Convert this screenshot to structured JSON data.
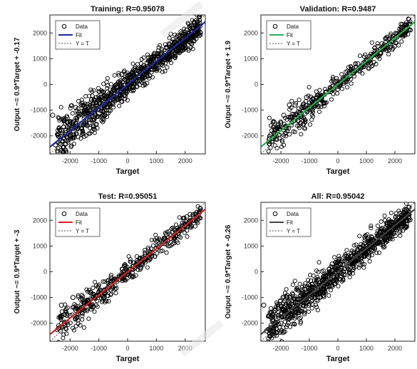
{
  "figure": {
    "panels": [
      {
        "title": "Training: R=0.95078",
        "ylabel": "Output ~= 0.9*Target + -0.17",
        "xlabel": "Target",
        "fit_color": "#1f2a9e",
        "legend": [
          "Data",
          "Fit",
          "Y = T"
        ]
      },
      {
        "title": "Validation: R=0.9487",
        "ylabel": "Output ~= 0.9*Target + 1.9",
        "xlabel": "Target",
        "fit_color": "#22b14c",
        "legend": [
          "Data",
          "Fit",
          "Y = T"
        ]
      },
      {
        "title": "Test: R=0.95051",
        "ylabel": "Output ~= 0.9*Target + -3",
        "xlabel": "Target",
        "fit_color": "#d42020",
        "legend": [
          "Data",
          "Fit",
          "Y = T"
        ]
      },
      {
        "title": "All: R=0.95042",
        "ylabel": "Output ~= 0.9*Target + -0.26",
        "xlabel": "Target",
        "fit_color": "#444444",
        "legend": [
          "Data",
          "Fit",
          "Y = T"
        ]
      }
    ]
  },
  "chart_data": [
    {
      "type": "scatter",
      "title": "Training: R=0.95078",
      "xlabel": "Target",
      "ylabel": "Output ~= 0.9*Target + -0.17",
      "xlim": [
        -2700,
        2700
      ],
      "ylim": [
        -2700,
        2700
      ],
      "xticks": [
        -2000,
        -1000,
        0,
        1000,
        2000
      ],
      "xtick_labels": [
        "-2000",
        "-1000",
        "0",
        "1000",
        "2000"
      ],
      "yticks": [
        -2000,
        -1000,
        0,
        1000,
        2000
      ],
      "ytick_labels": [
        "-2000",
        "-1000",
        "0",
        "1000",
        "2000"
      ],
      "R": 0.95078,
      "fit": {
        "slope": 0.9,
        "intercept": -0.17
      },
      "series": [
        {
          "name": "Data",
          "x": [
            -2500,
            -2300,
            -2100,
            -1900,
            -1700,
            -1500,
            -1300,
            -1100,
            -900,
            -700,
            -500,
            -300,
            -100,
            100,
            300,
            500,
            700,
            900,
            1100,
            1300,
            1500,
            1700,
            1900,
            2100,
            2300,
            2500,
            -2200,
            -1800,
            -1400,
            -1000,
            -600,
            -200,
            200,
            600,
            1000,
            1400,
            1800,
            2200,
            -2000,
            -1600,
            -1200,
            -800,
            -400,
            0,
            400,
            800,
            1200,
            1600,
            2000,
            2400,
            -2600,
            -1750,
            -1250,
            -650,
            1750
          ],
          "y": [
            -2350,
            -1800,
            -1300,
            -1500,
            -1100,
            -1300,
            -900,
            -700,
            -500,
            -300,
            -200,
            100,
            200,
            300,
            400,
            600,
            700,
            900,
            1100,
            1200,
            1400,
            1600,
            1800,
            2000,
            2200,
            2400,
            -1400,
            -900,
            -1600,
            -600,
            -800,
            400,
            -100,
            300,
            700,
            1100,
            1500,
            1900,
            -2000,
            -1700,
            -1400,
            -1000,
            -600,
            0,
            500,
            900,
            1200,
            1500,
            1700,
            2500,
            -1200,
            -1700,
            -600,
            -1000,
            1900
          ]
        },
        {
          "name": "Fit",
          "x": [
            -2700,
            2700
          ],
          "y": [
            -2430.17,
            2429.83
          ]
        },
        {
          "name": "Y = T",
          "x": [
            -2700,
            2700
          ],
          "y": [
            -2700,
            2700
          ]
        }
      ],
      "grid": false,
      "legend_position": "top-left"
    },
    {
      "type": "scatter",
      "title": "Validation: R=0.9487",
      "xlabel": "Target",
      "ylabel": "Output ~= 0.9*Target + 1.9",
      "xlim": [
        -2700,
        2700
      ],
      "ylim": [
        -2700,
        2700
      ],
      "xticks": [
        -2000,
        -1000,
        0,
        1000,
        2000
      ],
      "xtick_labels": [
        "-2000",
        "-1000",
        "0",
        "1000",
        "2000"
      ],
      "yticks": [
        -2000,
        -1000,
        0,
        1000,
        2000
      ],
      "ytick_labels": [
        "-2000",
        "-1000",
        "0",
        "1000",
        "2000"
      ],
      "R": 0.9487,
      "fit": {
        "slope": 0.9,
        "intercept": 1.9
      },
      "series": [
        {
          "name": "Data",
          "x": [
            -2400,
            -2200,
            -2000,
            -1800,
            -1600,
            -1400,
            -1200,
            -1000,
            -800,
            -600,
            -400,
            -200,
            0,
            200,
            400,
            600,
            800,
            1000,
            1200,
            1400,
            1600,
            1800,
            2000,
            2200,
            2400,
            -2100,
            -1700,
            -1300,
            -900,
            -500,
            -100,
            300,
            700,
            1100,
            1500,
            1900,
            2300,
            -1900,
            -1500,
            -1100
          ],
          "y": [
            -2100,
            -1900,
            -1500,
            -1700,
            -1300,
            -1400,
            -1000,
            -900,
            -700,
            -500,
            -300,
            -200,
            0,
            200,
            300,
            500,
            700,
            900,
            1100,
            1300,
            1400,
            1600,
            1800,
            2000,
            2200,
            -1600,
            -800,
            -1500,
            -1000,
            -700,
            100,
            100,
            800,
            900,
            1200,
            1800,
            2000,
            -1200,
            -800,
            -500
          ]
        },
        {
          "name": "Fit",
          "x": [
            -2700,
            2700
          ],
          "y": [
            -2428.1,
            2431.9
          ]
        },
        {
          "name": "Y = T",
          "x": [
            -2700,
            2700
          ],
          "y": [
            -2700,
            2700
          ]
        }
      ],
      "grid": false,
      "legend_position": "top-left"
    },
    {
      "type": "scatter",
      "title": "Test: R=0.95051",
      "xlabel": "Target",
      "ylabel": "Output ~= 0.9*Target + -3",
      "xlim": [
        -2700,
        2700
      ],
      "ylim": [
        -2700,
        2700
      ],
      "xticks": [
        -2000,
        -1000,
        0,
        1000,
        2000
      ],
      "xtick_labels": [
        "-2000",
        "-1000",
        "0",
        "1000",
        "2000"
      ],
      "yticks": [
        -2000,
        -1000,
        0,
        1000,
        2000
      ],
      "ytick_labels": [
        "-2000",
        "-1000",
        "0",
        "1000",
        "2000"
      ],
      "R": 0.95051,
      "fit": {
        "slope": 0.9,
        "intercept": -3
      },
      "series": [
        {
          "name": "Data",
          "x": [
            -2400,
            -2200,
            -2000,
            -1800,
            -1600,
            -1400,
            -1200,
            -1000,
            -800,
            -600,
            -400,
            -200,
            0,
            200,
            400,
            600,
            800,
            1000,
            1200,
            1400,
            1600,
            1800,
            2000,
            2200,
            2400,
            -2100,
            -1700,
            -1300,
            -900,
            -500,
            -100,
            300,
            700,
            1100,
            1500,
            1900,
            2300,
            -2300,
            -1900,
            -1500
          ],
          "y": [
            -2200,
            -2000,
            -1700,
            -1500,
            -1400,
            -1100,
            -1000,
            -800,
            -700,
            -500,
            -300,
            -200,
            0,
            200,
            300,
            500,
            700,
            900,
            1100,
            1200,
            1400,
            1600,
            1800,
            2000,
            2300,
            -1700,
            -1500,
            -800,
            -900,
            -600,
            -100,
            300,
            600,
            1000,
            1300,
            1800,
            2000,
            -1300,
            -1000,
            -1200
          ]
        },
        {
          "name": "Fit",
          "x": [
            -2700,
            2700
          ],
          "y": [
            -2433,
            2427
          ]
        },
        {
          "name": "Y = T",
          "x": [
            -2700,
            2700
          ],
          "y": [
            -2700,
            2700
          ]
        }
      ],
      "grid": false,
      "legend_position": "top-left"
    },
    {
      "type": "scatter",
      "title": "All: R=0.95042",
      "xlabel": "Target",
      "ylabel": "Output ~= 0.9*Target + -0.26",
      "xlim": [
        -2700,
        2700
      ],
      "ylim": [
        -2700,
        2700
      ],
      "xticks": [
        -2000,
        -1000,
        0,
        1000,
        2000
      ],
      "xtick_labels": [
        "-2000",
        "-1000",
        "0",
        "1000",
        "2000"
      ],
      "yticks": [
        -2000,
        -1000,
        0,
        1000,
        2000
      ],
      "ytick_labels": [
        "-2000",
        "-1000",
        "0",
        "1000",
        "2000"
      ],
      "R": 0.95042,
      "fit": {
        "slope": 0.9,
        "intercept": -0.26
      },
      "series": [
        {
          "name": "Data",
          "x": [
            -2500,
            -2300,
            -2100,
            -1900,
            -1700,
            -1500,
            -1300,
            -1100,
            -900,
            -700,
            -500,
            -300,
            -100,
            100,
            300,
            500,
            700,
            900,
            1100,
            1300,
            1500,
            1700,
            1900,
            2100,
            2300,
            2500,
            -2200,
            -1800,
            -1400,
            -1000,
            -600,
            -200,
            200,
            600,
            1000,
            1400,
            1800,
            2200,
            -2000,
            -1600,
            -1200,
            -800,
            -400,
            0,
            400,
            800,
            1200,
            1600,
            2000,
            2400,
            -2600,
            -1750,
            -1250,
            -650,
            1750
          ],
          "y": [
            -2300,
            -1900,
            -1400,
            -1500,
            -1200,
            -1200,
            -900,
            -800,
            -500,
            -300,
            -200,
            100,
            200,
            300,
            400,
            600,
            800,
            900,
            1100,
            1200,
            1400,
            1600,
            1800,
            2000,
            2200,
            2500,
            -1500,
            -1000,
            -1600,
            -700,
            -800,
            300,
            -100,
            400,
            700,
            1100,
            1500,
            1900,
            -2000,
            -1700,
            -1300,
            -1000,
            -600,
            0,
            500,
            900,
            1200,
            1500,
            1700,
            2400,
            -1300,
            -1700,
            -700,
            -1000,
            1900
          ]
        },
        {
          "name": "Fit",
          "x": [
            -2700,
            2700
          ],
          "y": [
            -2430.26,
            2429.74
          ]
        },
        {
          "name": "Y = T",
          "x": [
            -2700,
            2700
          ],
          "y": [
            -2700,
            2700
          ]
        }
      ],
      "grid": false,
      "legend_position": "top-left"
    }
  ]
}
